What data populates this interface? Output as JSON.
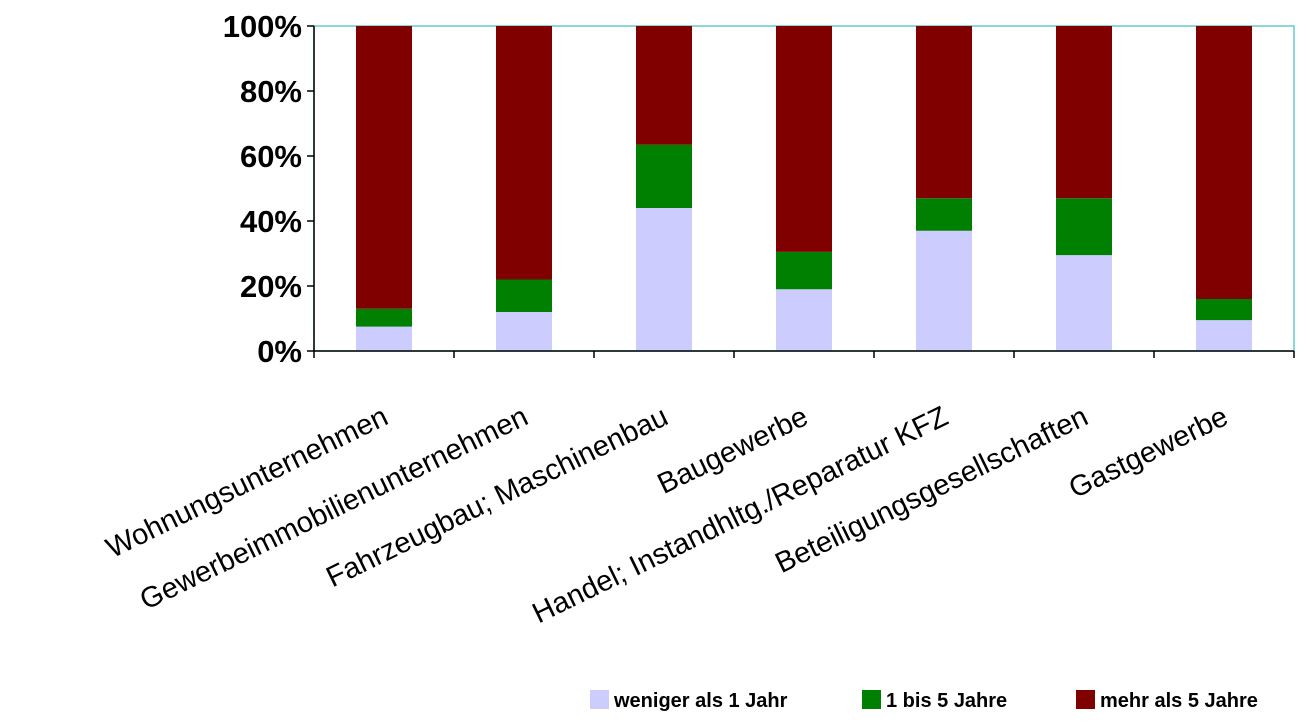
{
  "chart_data": {
    "type": "bar",
    "stacked": "percent",
    "title": "",
    "xlabel": "",
    "ylabel": "",
    "ylim": [
      0,
      100
    ],
    "yticks": [
      "0%",
      "20%",
      "40%",
      "60%",
      "80%",
      "100%"
    ],
    "grid": false,
    "legend_position": "bottom-right",
    "categories": [
      "Wohnungsunternehmen",
      "Gewerbeimmobilienunternehmen",
      "Fahrzeugbau; Maschinenbau",
      "Baugewerbe",
      "Handel; Instandhltg./Reparatur KFZ",
      "Beteiligungsgesellschaften",
      "Gastgewerbe"
    ],
    "series": [
      {
        "name": "weniger als 1 Jahr",
        "color": "#ccccff",
        "values": [
          7.5,
          12,
          44,
          19,
          37,
          29.5,
          9.5
        ]
      },
      {
        "name": "1 bis 5 Jahre",
        "color": "#008000",
        "values": [
          5.5,
          10,
          19.5,
          11.5,
          10,
          17.5,
          6.5
        ]
      },
      {
        "name": "mehr als 5 Jahre",
        "color": "#800000",
        "values": [
          87,
          78,
          36.5,
          69.5,
          53,
          53,
          84
        ]
      }
    ]
  }
}
